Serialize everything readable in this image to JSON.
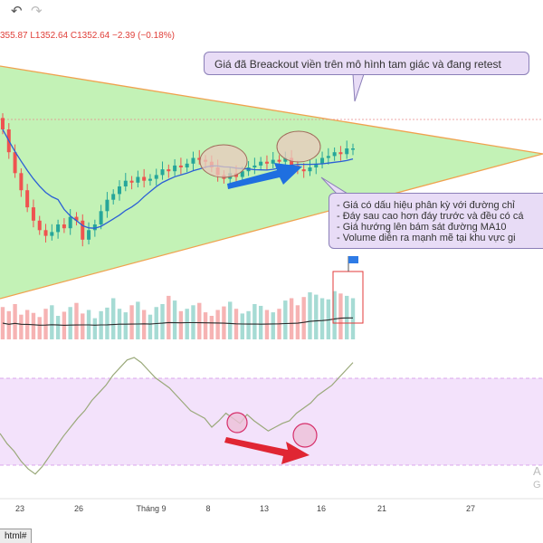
{
  "toolbar": {
    "undo_icon": "undo-icon",
    "redo_icon": "redo-icon"
  },
  "ohlc": {
    "text": "355.87 L1352.64 C1352.64 −2.39 (−0.18%)"
  },
  "annotations": {
    "top_note": "Giá đã Breackout viền trên mô hình tam giác và đang retest",
    "side_notes": [
      "- Giá có dấu hiệu phân kỳ với đường chỉ",
      "- Đáy sau cao hơn đáy trước và đều có cá",
      "- Giá hướng lên bám sát đường MA10",
      "- Volume diễn ra mạnh mẽ tại khu vực gi"
    ]
  },
  "x_axis": {
    "labels": [
      "23",
      "26",
      "Tháng 9",
      "8",
      "13",
      "16",
      "21",
      "27"
    ]
  },
  "watermark": {
    "line1": "A",
    "line2": "G"
  },
  "url_bar": {
    "text": "html#"
  },
  "colors": {
    "up": "#26a69a",
    "down": "#ef5350",
    "triangle_fill": "#c3f2b6",
    "triangle_line": "#f0a24f",
    "ma_line": "#2b5fd6",
    "volume_ma": "#2a2a2a",
    "rsi_line": "#9aa97a",
    "rsi_band": "#f3e2fb",
    "rsi_band_line": "#cf8de6",
    "arrow_blue": "#1f6fe0",
    "arrow_red": "#e02633",
    "ellipse_fill": "#e9c9bd",
    "ellipse_stroke": "#a06a5a",
    "rsi_circle": "#d62f6a",
    "highlight_box": "#e33a3a",
    "flag": "#2e7be6"
  },
  "chart_data": {
    "type": "candlestick",
    "title": "",
    "xlabel": "",
    "ylabel": "",
    "x_tick_labels": [
      "23",
      "26",
      "Tháng 9",
      "8",
      "13",
      "16",
      "21",
      "27"
    ],
    "last_close": 1352.64,
    "last_change": -2.39,
    "last_change_pct": -0.18,
    "closes": [
      0.7,
      0.58,
      0.47,
      0.38,
      0.29,
      0.22,
      0.17,
      0.14,
      0.16,
      0.2,
      0.18,
      0.24,
      0.22,
      0.12,
      0.17,
      0.2,
      0.27,
      0.33,
      0.36,
      0.4,
      0.43,
      0.42,
      0.45,
      0.43,
      0.44,
      0.46,
      0.49,
      0.48,
      0.51,
      0.5,
      0.52,
      0.55,
      0.54,
      0.53,
      0.5,
      0.46,
      0.44,
      0.47,
      0.45,
      0.48,
      0.5,
      0.51,
      0.53,
      0.52,
      0.54,
      0.53,
      0.55,
      0.51,
      0.49,
      0.48,
      0.5,
      0.52,
      0.55,
      0.56,
      0.58,
      0.57,
      0.6,
      0.6
    ],
    "ma_label": "MA10",
    "volume": [
      0.55,
      0.48,
      0.6,
      0.42,
      0.5,
      0.45,
      0.38,
      0.52,
      0.58,
      0.4,
      0.47,
      0.55,
      0.62,
      0.44,
      0.5,
      0.36,
      0.48,
      0.54,
      0.7,
      0.52,
      0.46,
      0.58,
      0.64,
      0.5,
      0.42,
      0.55,
      0.6,
      0.74,
      0.66,
      0.48,
      0.52,
      0.58,
      0.62,
      0.46,
      0.4,
      0.5,
      0.56,
      0.64,
      0.52,
      0.44,
      0.48,
      0.6,
      0.57,
      0.5,
      0.46,
      0.52,
      0.66,
      0.7,
      0.58,
      0.72,
      0.8,
      0.76,
      0.7,
      0.68,
      0.82,
      0.78,
      0.74,
      0.7
    ],
    "rsi": [
      0.4,
      0.32,
      0.26,
      0.18,
      0.12,
      0.08,
      0.14,
      0.22,
      0.3,
      0.38,
      0.45,
      0.52,
      0.58,
      0.66,
      0.72,
      0.78,
      0.86,
      0.92,
      0.98,
      1.0,
      0.96,
      0.9,
      0.84,
      0.8,
      0.76,
      0.7,
      0.64,
      0.58,
      0.55,
      0.52,
      0.45,
      0.5,
      0.56,
      0.52,
      0.48,
      0.55,
      0.5,
      0.46,
      0.42,
      0.45,
      0.48,
      0.5,
      0.56,
      0.6,
      0.64,
      0.7,
      0.74,
      0.78,
      0.84,
      0.9,
      0.96
    ]
  }
}
